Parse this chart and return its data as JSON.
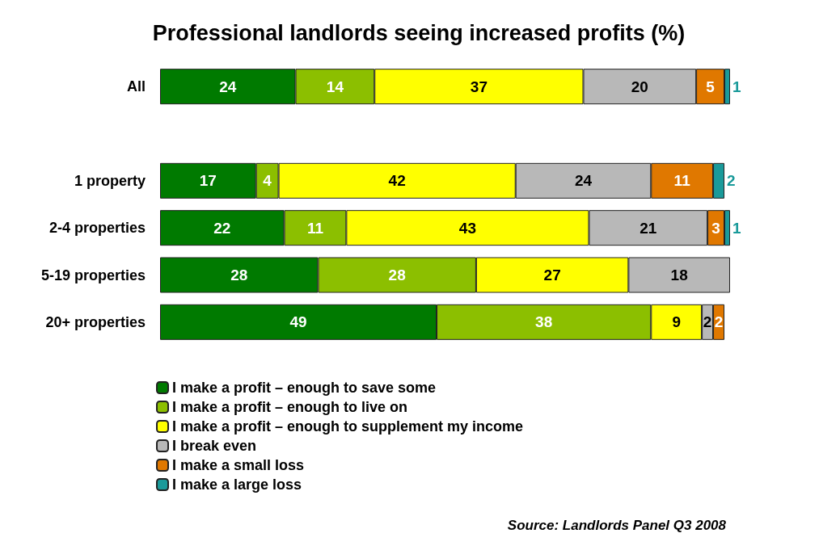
{
  "chart_data": {
    "type": "bar",
    "orientation": "horizontal",
    "stacked": true,
    "title": "Professional landlords seeing increased profits (%)",
    "categories": [
      "All",
      null,
      "1 property",
      "2-4 properties",
      "5-19 properties",
      "20+ properties"
    ],
    "series": [
      {
        "name": "I make a profit – enough to save some",
        "color": "#007a00",
        "values": [
          24,
          null,
          17,
          22,
          28,
          49
        ]
      },
      {
        "name": "I make a profit – enough to live on",
        "color": "#8cbf00",
        "values": [
          14,
          null,
          4,
          11,
          28,
          38
        ]
      },
      {
        "name": "I make a profit – enough to supplement my income",
        "color": "#ffff00",
        "values": [
          37,
          null,
          42,
          43,
          27,
          9
        ]
      },
      {
        "name": "I break even",
        "color": "#b8b8b8",
        "values": [
          20,
          null,
          24,
          21,
          18,
          2
        ]
      },
      {
        "name": "I make a small loss",
        "color": "#e07800",
        "values": [
          5,
          null,
          11,
          3,
          null,
          2
        ]
      },
      {
        "name": "I make a large loss",
        "color": "#1a9a9a",
        "values": [
          1,
          null,
          2,
          1,
          null,
          null
        ]
      }
    ],
    "data_labels": true,
    "legend": "bottom left",
    "annotations": [
      "Source: Landlords Panel Q3 2008"
    ]
  }
}
